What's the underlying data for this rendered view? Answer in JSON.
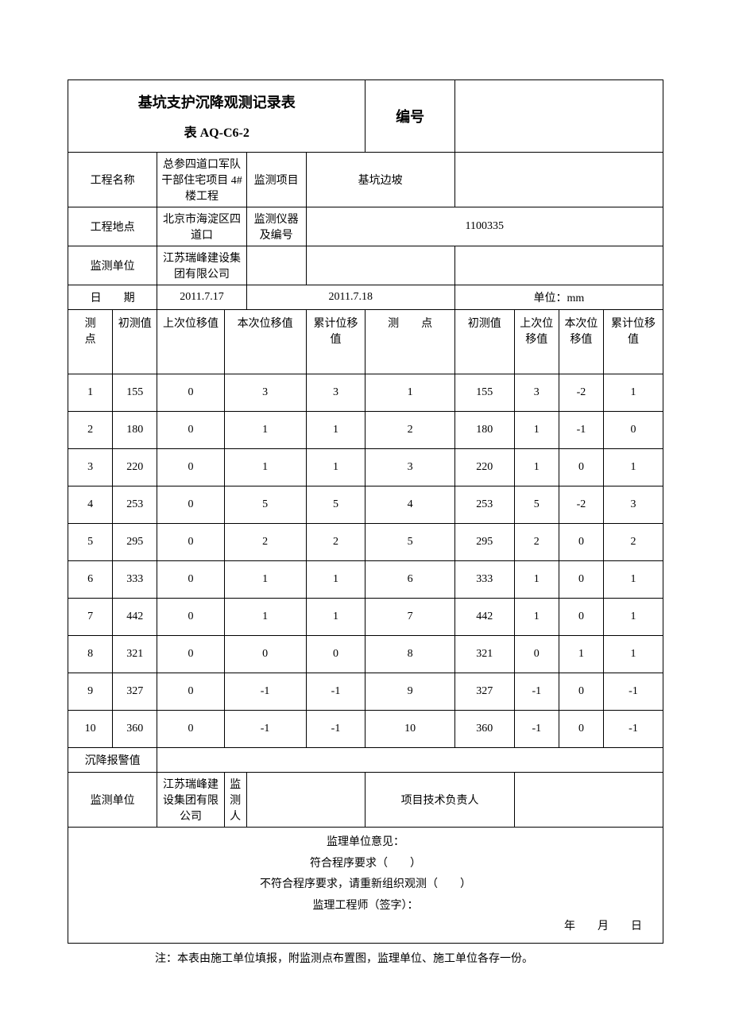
{
  "title": "基坑支护沉降观测记录表",
  "subtitle": "表 AQ-C6-2",
  "labels": {
    "bianhao": "编号",
    "project_name": "工程名称",
    "monitor_item": "监测项目",
    "project_addr": "工程地点",
    "instrument": "监测仪器及编号",
    "monitor_unit": "监测单位",
    "date": "日　　期",
    "unit": "单位：mm",
    "point": "测　　点",
    "initial": "初测值",
    "last_disp": "上次位移值",
    "this_disp": "本次位移值",
    "cum_disp": "累计位移值",
    "alarm": "沉降报警值",
    "monitor_unit2": "监测单位",
    "monitor_person": "监测人",
    "tech_leader": "项目技术负责人",
    "opinion_title": "监理单位意见：",
    "opinion_ok": "符合程序要求（　　）",
    "opinion_no": "不符合程序要求，请重新组织观测（　　）",
    "engineer_sign": "监理工程师（签字）：",
    "date_sign": "年　　月　　日",
    "note": "注：本表由施工单位填报，附监测点布置图，监理单位、施工单位各存一份。"
  },
  "values": {
    "project_name": "总参四道口军队干部住宅项目 4#楼工程",
    "monitor_item": "基坑边坡",
    "project_addr": "北京市海淀区四道口",
    "instrument": "1100335",
    "monitor_unit": "江苏瑞峰建设集团有限公司",
    "monitor_unit2": "江苏瑞峰建设集团有限公司",
    "date_left": "2011.7.17",
    "date_right": "2011.7.18"
  },
  "rows": [
    {
      "p1": "1",
      "i1": "155",
      "l1": "0",
      "t1": "3",
      "c1": "3",
      "p2": "1",
      "i2": "155",
      "l2": "3",
      "t2": "-2",
      "c2": "1"
    },
    {
      "p1": "2",
      "i1": "180",
      "l1": "0",
      "t1": "1",
      "c1": "1",
      "p2": "2",
      "i2": "180",
      "l2": "1",
      "t2": "-1",
      "c2": "0"
    },
    {
      "p1": "3",
      "i1": "220",
      "l1": "0",
      "t1": "1",
      "c1": "1",
      "p2": "3",
      "i2": "220",
      "l2": "1",
      "t2": "0",
      "c2": "1"
    },
    {
      "p1": "4",
      "i1": "253",
      "l1": "0",
      "t1": "5",
      "c1": "5",
      "p2": "4",
      "i2": "253",
      "l2": "5",
      "t2": "-2",
      "c2": "3"
    },
    {
      "p1": "5",
      "i1": "295",
      "l1": "0",
      "t1": "2",
      "c1": "2",
      "p2": "5",
      "i2": "295",
      "l2": "2",
      "t2": "0",
      "c2": "2"
    },
    {
      "p1": "6",
      "i1": "333",
      "l1": "0",
      "t1": "1",
      "c1": "1",
      "p2": "6",
      "i2": "333",
      "l2": "1",
      "t2": "0",
      "c2": "1"
    },
    {
      "p1": "7",
      "i1": "442",
      "l1": "0",
      "t1": "1",
      "c1": "1",
      "p2": "7",
      "i2": "442",
      "l2": "1",
      "t2": "0",
      "c2": "1"
    },
    {
      "p1": "8",
      "i1": "321",
      "l1": "0",
      "t1": "0",
      "c1": "0",
      "p2": "8",
      "i2": "321",
      "l2": "0",
      "t2": "1",
      "c2": "1"
    },
    {
      "p1": "9",
      "i1": "327",
      "l1": "0",
      "t1": "-1",
      "c1": "-1",
      "p2": "9",
      "i2": "327",
      "l2": "-1",
      "t2": "0",
      "c2": "-1"
    },
    {
      "p1": "10",
      "i1": "360",
      "l1": "0",
      "t1": "-1",
      "c1": "-1",
      "p2": "10",
      "i2": "360",
      "l2": "-1",
      "t2": "0",
      "c2": "-1"
    }
  ]
}
